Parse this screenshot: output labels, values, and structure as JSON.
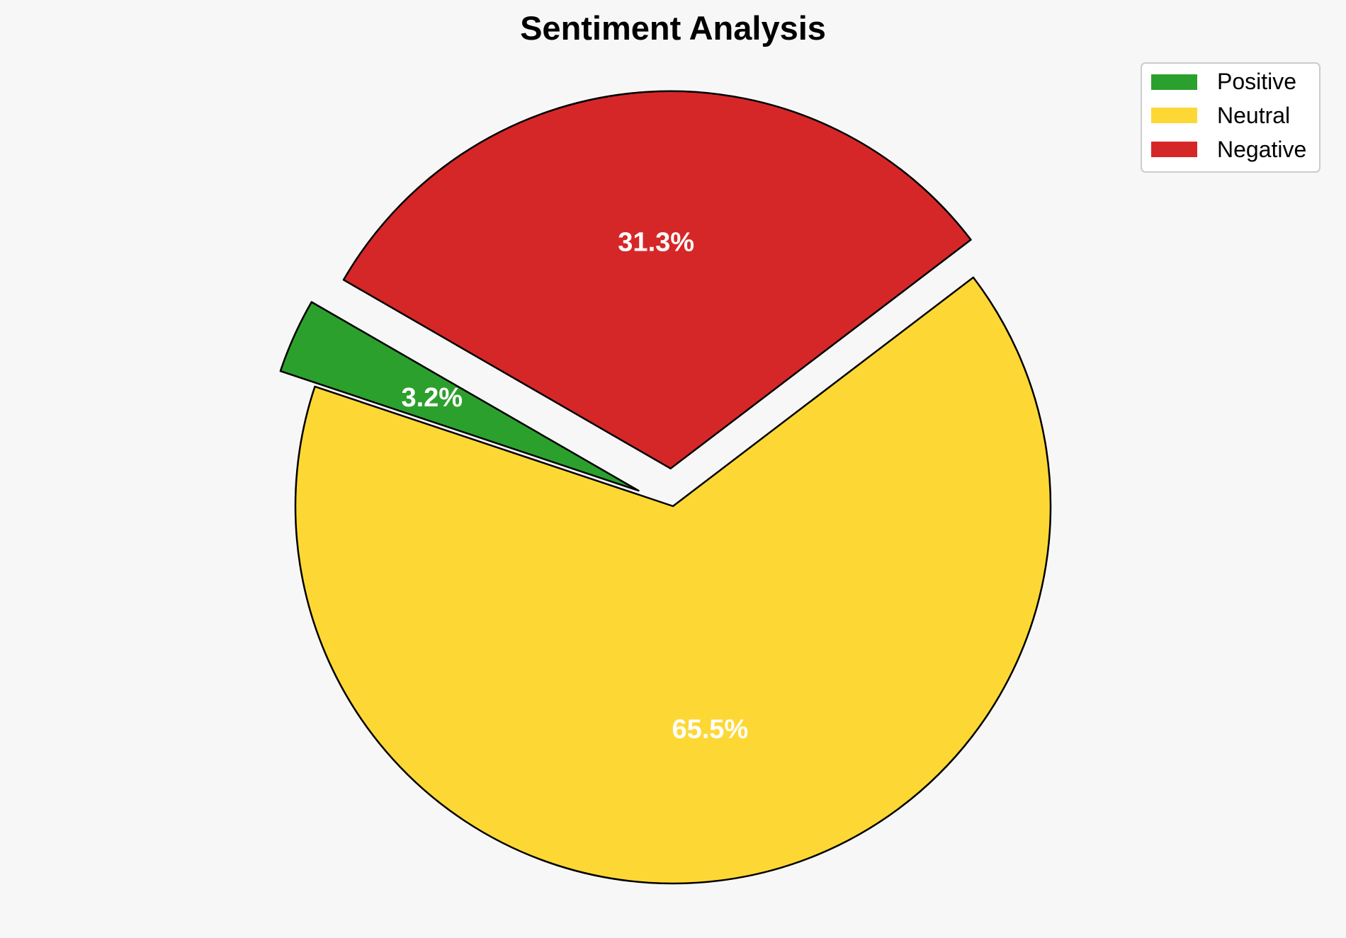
{
  "chart_data": {
    "type": "pie",
    "title": "Sentiment Analysis",
    "legend_position": "top-right",
    "slices": [
      {
        "name": "Positive",
        "value": 3.2,
        "label": "3.2%",
        "color": "#2ca02c"
      },
      {
        "name": "Neutral",
        "value": 65.5,
        "label": "65.5%",
        "color": "#fdd835"
      },
      {
        "name": "Negative",
        "value": 31.3,
        "label": "31.3%",
        "color": "#d62728"
      }
    ],
    "edge_color": "#000000",
    "label_color": "#ffffff",
    "background": "#f7f7f7"
  }
}
